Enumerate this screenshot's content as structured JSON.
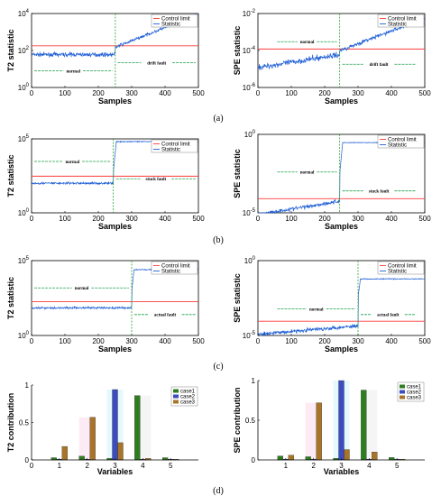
{
  "captions": [
    "(a)",
    "(b)",
    "(c)",
    "(d)"
  ],
  "colors": {
    "control_limit": "#ff3b3b",
    "statistic": "#1f5fd6",
    "fault_line": "#2ca02c",
    "annotation": "#1aa04a",
    "case1": "#2e7d1e",
    "case2": "#3b4cc0",
    "case3": "#a8742a"
  },
  "chart_data": [
    {
      "id": "a-left",
      "type": "line",
      "scale": "log",
      "ylabel": "T2 statistic",
      "xlabel": "Samples",
      "xlim": [
        0,
        500
      ],
      "xticks": [
        "0",
        "100",
        "200",
        "300",
        "400",
        "500"
      ],
      "ylim_exp": [
        0,
        4
      ],
      "yticks": [
        {
          "base": "10",
          "exp": "0"
        },
        {
          "base": "10",
          "exp": "2"
        },
        {
          "base": "10",
          "exp": "4"
        }
      ],
      "legend": [
        "Control limit",
        "Statistic"
      ],
      "control_limit": 180,
      "fault_at": 251,
      "normal": {
        "from": 1,
        "to": 250,
        "level": 60,
        "noise": 0.1
      },
      "fault": {
        "from": 251,
        "to": 500,
        "start": 150,
        "end": 9000,
        "noise": 0.08
      },
      "annotations": [
        {
          "text": "normal",
          "x": 0,
          "x2": 250,
          "y": 8
        },
        {
          "text": "drift fault",
          "x": 250,
          "x2": 500,
          "y": 22
        }
      ]
    },
    {
      "id": "a-right",
      "type": "line",
      "scale": "log",
      "ylabel": "SPE statistic",
      "xlabel": "Samples",
      "xlim": [
        0,
        500
      ],
      "xticks": [
        "0",
        "100",
        "200",
        "300",
        "400",
        "500"
      ],
      "ylim_exp": [
        -6,
        -2
      ],
      "yticks": [
        {
          "base": "10",
          "exp": "-6"
        },
        {
          "base": "10",
          "exp": "-4"
        },
        {
          "base": "10",
          "exp": "-2"
        }
      ],
      "legend": [
        "Control limit",
        "Statistic"
      ],
      "control_limit": 0.00012,
      "fault_at": 245,
      "normal": {
        "from": 1,
        "to": 245,
        "start": 1.2e-05,
        "end": 6e-05,
        "noise": 0.15
      },
      "fault": {
        "from": 246,
        "to": 500,
        "start": 0.0001,
        "end": 0.0055,
        "noise": 0.1
      },
      "annotations": [
        {
          "text": "normal",
          "x": 50,
          "x2": 245,
          "y": 0.0003
        },
        {
          "text": "drift fault",
          "x": 245,
          "x2": 480,
          "y": 1.8e-05
        }
      ]
    },
    {
      "id": "b-left",
      "type": "line",
      "scale": "log",
      "ylabel": "T2 statistic",
      "xlabel": "Samples",
      "xlim": [
        0,
        500
      ],
      "xticks": [
        "0",
        "100",
        "200",
        "300",
        "400",
        "500"
      ],
      "ylim_exp": [
        0,
        5
      ],
      "yticks": [
        {
          "base": "10",
          "exp": "0"
        },
        {
          "base": "10",
          "exp": "5"
        }
      ],
      "legend": [
        "Control limit",
        "Statistic"
      ],
      "control_limit": 300,
      "fault_at": 245,
      "normal": {
        "from": 1,
        "to": 245,
        "level": 100,
        "noise": 0.07
      },
      "fault": {
        "from": 246,
        "to": 500,
        "start": 1000,
        "end": 65000,
        "rise": 8,
        "noise": 0.03
      },
      "annotations": [
        {
          "text": "normal",
          "x": 0,
          "x2": 245,
          "y": 3000
        },
        {
          "text": "stuck fault",
          "x": 245,
          "x2": 500,
          "y": 200
        }
      ]
    },
    {
      "id": "b-right",
      "type": "line",
      "scale": "log",
      "ylabel": "SPE statistic",
      "xlabel": "Samples",
      "xlim": [
        0,
        500
      ],
      "xticks": [
        "0",
        "100",
        "200",
        "300",
        "400",
        "500"
      ],
      "ylim_exp": [
        -5,
        0
      ],
      "yticks": [
        {
          "base": "10",
          "exp": "-5"
        },
        {
          "base": "10",
          "exp": "0"
        }
      ],
      "legend": [
        "Control limit",
        "Statistic"
      ],
      "control_limit": 8e-05,
      "fault_at": 245,
      "normal": {
        "from": 1,
        "to": 245,
        "start": 8e-06,
        "end": 5.5e-05,
        "noise": 0.12
      },
      "fault": {
        "from": 246,
        "to": 500,
        "start": 0.005,
        "end": 0.3,
        "rise": 8,
        "noise": 0.02
      },
      "annotations": [
        {
          "text": "normal",
          "x": 50,
          "x2": 245,
          "y": 0.004
        },
        {
          "text": "stuck fault",
          "x": 245,
          "x2": 480,
          "y": 0.00025
        }
      ]
    },
    {
      "id": "c-left",
      "type": "line",
      "scale": "log",
      "ylabel": "T2 statistic",
      "xlabel": "Samples",
      "xlim": [
        0,
        500
      ],
      "xticks": [
        "0",
        "100",
        "200",
        "300",
        "400",
        "500"
      ],
      "ylim_exp": [
        0,
        5
      ],
      "yticks": [
        {
          "base": "10",
          "exp": "0"
        },
        {
          "base": "10",
          "exp": "5"
        }
      ],
      "legend": [
        "Control limit",
        "Statistic"
      ],
      "control_limit": 180,
      "fault_at": 300,
      "normal": {
        "from": 1,
        "to": 300,
        "level": 70,
        "noise": 0.07
      },
      "fault": {
        "from": 301,
        "to": 500,
        "start": 1200,
        "end": 25000,
        "rise": 6,
        "noise": 0.03
      },
      "annotations": [
        {
          "text": "normal",
          "x": 0,
          "x2": 300,
          "y": 1500
        },
        {
          "text": "actual fault",
          "x": 300,
          "x2": 500,
          "y": 25
        }
      ]
    },
    {
      "id": "c-right",
      "type": "line",
      "scale": "log",
      "ylabel": "SPE statistic",
      "xlabel": "Samples",
      "xlim": [
        0,
        500
      ],
      "xticks": [
        "0",
        "100",
        "200",
        "300",
        "400",
        "500"
      ],
      "ylim_exp": [
        -5,
        0
      ],
      "yticks": [
        {
          "base": "10",
          "exp": "-5"
        },
        {
          "base": "10",
          "exp": "0"
        }
      ],
      "legend": [
        "Control limit",
        "Statistic"
      ],
      "control_limit": 9e-05,
      "fault_at": 300,
      "normal": {
        "from": 1,
        "to": 300,
        "start": 1.2e-05,
        "end": 4.5e-05,
        "noise": 0.12
      },
      "fault": {
        "from": 301,
        "to": 500,
        "start": 0.005,
        "end": 0.06,
        "rise": 6,
        "noise": 0.03
      },
      "annotations": [
        {
          "text": "normal",
          "x": 50,
          "x2": 300,
          "y": 0.0006
        },
        {
          "text": "actual fault",
          "x": 300,
          "x2": 480,
          "y": 0.00025
        }
      ]
    },
    {
      "id": "d-left",
      "type": "bar",
      "ylabel": "T2 contribution",
      "xlabel": "Variables",
      "xlim": [
        0,
        6
      ],
      "xticks": [
        "0",
        "1",
        "2",
        "3",
        "4",
        "5"
      ],
      "categories": [
        1,
        2,
        3,
        4,
        5
      ],
      "ylim": [
        0,
        1
      ],
      "yticks": [
        "0",
        "0.5",
        "1"
      ],
      "series": [
        {
          "name": "case1",
          "values": [
            0.03,
            0.05,
            0.02,
            0.86,
            0.03
          ]
        },
        {
          "name": "case2",
          "values": [
            0.01,
            0.01,
            0.94,
            0.01,
            0.01
          ]
        },
        {
          "name": "case3",
          "values": [
            0.18,
            0.57,
            0.23,
            0.02,
            0.01
          ]
        }
      ]
    },
    {
      "id": "d-right",
      "type": "bar",
      "ylabel": "SPE contribution",
      "xlabel": "Variables",
      "xlim": [
        0,
        6
      ],
      "xticks": [
        "1",
        "2",
        "3",
        "4",
        "5"
      ],
      "categories": [
        1,
        2,
        3,
        4,
        5
      ],
      "ylim": [
        0,
        1
      ],
      "yticks": [
        "0",
        "0.5",
        "1"
      ],
      "series": [
        {
          "name": "case1",
          "values": [
            0.05,
            0.04,
            0.02,
            0.88,
            0.03
          ]
        },
        {
          "name": "case2",
          "values": [
            0.01,
            0.01,
            1.0,
            0.01,
            0.01
          ]
        },
        {
          "name": "case3",
          "values": [
            0.06,
            0.72,
            0.13,
            0.1,
            0.01
          ]
        }
      ]
    }
  ]
}
